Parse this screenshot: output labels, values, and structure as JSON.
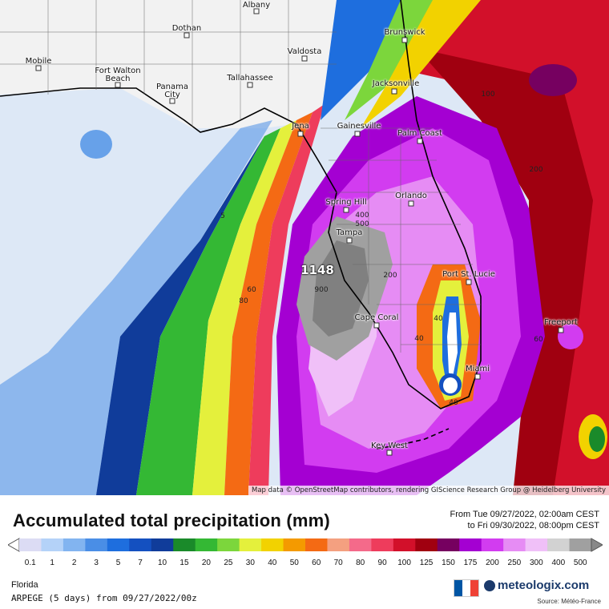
{
  "map": {
    "cities": [
      {
        "name": "Albany"
      },
      {
        "name": "Dothan"
      },
      {
        "name": "Brunswick"
      },
      {
        "name": "Valdosta"
      },
      {
        "name": "Mobile"
      },
      {
        "name": "Fort Walton Beach"
      },
      {
        "name": "Panama City"
      },
      {
        "name": "Tallahassee"
      },
      {
        "name": "Jacksonville"
      },
      {
        "name": "Jena"
      },
      {
        "name": "Gainesville"
      },
      {
        "name": "Palm Coast"
      },
      {
        "name": "Orlando"
      },
      {
        "name": "Spring Hill"
      },
      {
        "name": "Tampa"
      },
      {
        "name": "Port St. Lucie"
      },
      {
        "name": "Cape Coral"
      },
      {
        "name": "Freeport"
      },
      {
        "name": "Miami"
      },
      {
        "name": "Key West"
      }
    ],
    "contour_labels": [
      "5",
      "60",
      "80",
      "400",
      "500",
      "900",
      "200",
      "40",
      "40",
      "40",
      "100",
      "200",
      "60"
    ],
    "max_value": "1148",
    "credit": "Map data © OpenStreetMap contributors, rendering GIScience Research Group @ Heidelberg University"
  },
  "header": {
    "title": "Accumulated total precipitation (mm)",
    "period_from": "From Tue 09/27/2022, 02:00am CEST",
    "period_to": "to Fri 09/30/2022, 08:00pm CEST"
  },
  "legend": {
    "ticks": [
      "0.1",
      "1",
      "2",
      "3",
      "5",
      "7",
      "10",
      "15",
      "20",
      "25",
      "30",
      "40",
      "50",
      "60",
      "70",
      "80",
      "90",
      "100",
      "125",
      "150",
      "175",
      "200",
      "250",
      "300",
      "400",
      "500"
    ],
    "colors": [
      "#dcdcf4",
      "#b4d2f8",
      "#82b4f0",
      "#4a8ee6",
      "#1e6ede",
      "#1450c0",
      "#103c9a",
      "#1a8a2a",
      "#34b834",
      "#7cd63c",
      "#e4f03c",
      "#f2d200",
      "#f49a00",
      "#f46a14",
      "#f4a080",
      "#f46a8a",
      "#ee3c5c",
      "#d2102a",
      "#a00010",
      "#760060",
      "#a400d2",
      "#d23cf0",
      "#e68cf4",
      "#f0c0f8",
      "#d2d2d2",
      "#a0a0a0"
    ]
  },
  "footer": {
    "region": "Florida",
    "model": "ARPEGE (5 days) from 09/27/2022/00z",
    "brand": "meteologix.com",
    "source": "Source: Météo-France",
    "flag_colors": [
      "#0055a4",
      "#ffffff",
      "#ef4135"
    ]
  }
}
